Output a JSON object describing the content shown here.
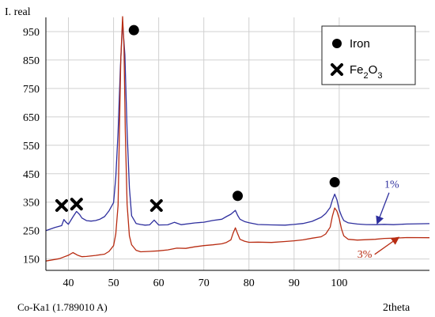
{
  "chart_data": {
    "type": "line",
    "ylabel": "I. real",
    "xlabel": "2theta",
    "footnote": "Co-Ka1 (1.789010 A)",
    "xlim": [
      35,
      120
    ],
    "ylim": [
      110,
      1000
    ],
    "x_ticks": [
      40,
      50,
      60,
      70,
      80,
      90,
      100
    ],
    "y_ticks": [
      150,
      250,
      350,
      450,
      550,
      650,
      750,
      850,
      950
    ],
    "grid": true,
    "legend": {
      "placement": "top-right",
      "entries": [
        {
          "marker": "circle",
          "label": "Iron"
        },
        {
          "marker": "cross",
          "label": "Fe2O3"
        }
      ]
    },
    "series": [
      {
        "name": "1%",
        "color": "#2e2f9e",
        "x": [
          35,
          37,
          38.5,
          39,
          39.5,
          40,
          41,
          41.8,
          42.5,
          43,
          44,
          45,
          46,
          47,
          48,
          49,
          50,
          50.5,
          51,
          51.5,
          52,
          52.5,
          53,
          53.5,
          54,
          55,
          56,
          57,
          58,
          59,
          60,
          62,
          63.5,
          65,
          68,
          70,
          72,
          74,
          75,
          76,
          77,
          77.5,
          78,
          79,
          80,
          82,
          85,
          88,
          90,
          92,
          94,
          96,
          97,
          98,
          98.5,
          99,
          99.5,
          100,
          100.5,
          101,
          102,
          104,
          106,
          108,
          110,
          112,
          115,
          120
        ],
        "y": [
          250,
          262,
          270,
          292,
          282,
          275,
          300,
          318,
          305,
          292,
          282,
          280,
          282,
          288,
          298,
          320,
          350,
          440,
          600,
          820,
          985,
          870,
          600,
          400,
          300,
          272,
          268,
          266,
          268,
          286,
          270,
          272,
          282,
          274,
          280,
          282,
          287,
          290,
          298,
          305,
          318,
          300,
          287,
          280,
          277,
          272,
          272,
          272,
          275,
          278,
          285,
          298,
          310,
          330,
          355,
          375,
          355,
          320,
          300,
          285,
          278,
          275,
          274,
          274,
          275,
          273,
          274,
          274
        ]
      },
      {
        "name": "3%",
        "color": "#b82c12",
        "x": [
          35,
          38,
          40,
          41,
          42,
          43,
          44,
          46,
          48,
          49,
          50,
          50.5,
          51,
          51.3,
          51.6,
          52,
          52.3,
          52.6,
          53,
          53.5,
          54,
          55,
          56,
          58,
          60,
          62,
          64,
          66,
          68,
          70,
          72,
          74,
          75,
          76,
          76.5,
          77,
          77.5,
          78,
          79,
          80,
          82,
          85,
          88,
          90,
          92,
          94,
          96,
          97,
          98,
          98.5,
          99,
          99.5,
          100,
          100.5,
          101,
          102,
          104,
          106,
          108,
          110,
          112,
          115,
          120
        ],
        "y": [
          140,
          148,
          160,
          170,
          162,
          158,
          160,
          165,
          170,
          180,
          200,
          240,
          340,
          600,
          850,
          1000,
          900,
          600,
          340,
          230,
          200,
          182,
          178,
          180,
          182,
          185,
          190,
          188,
          192,
          195,
          197,
          200,
          205,
          215,
          240,
          260,
          240,
          222,
          216,
          212,
          212,
          210,
          212,
          213,
          215,
          220,
          225,
          235,
          260,
          300,
          330,
          320,
          295,
          260,
          235,
          222,
          218,
          218,
          218,
          220,
          220,
          222,
          222
        ]
      }
    ],
    "markers": [
      {
        "type": "circle",
        "x": 54.5,
        "y": 955
      },
      {
        "type": "circle",
        "x": 77.5,
        "y": 372
      },
      {
        "type": "circle",
        "x": 99,
        "y": 420
      },
      {
        "type": "cross",
        "x": 38.5,
        "y": 338
      },
      {
        "type": "cross",
        "x": 41.8,
        "y": 343
      },
      {
        "type": "cross",
        "x": 59.5,
        "y": 338
      }
    ],
    "annotations": [
      {
        "text": "1%",
        "color": "#2e2f9e",
        "x": 110,
        "y": 400,
        "arrow_to": [
          108.5,
          278
        ]
      },
      {
        "text": "3%",
        "color": "#b82c12",
        "x": 104,
        "y": 155,
        "arrow_to": [
          113,
          224
        ]
      }
    ]
  }
}
